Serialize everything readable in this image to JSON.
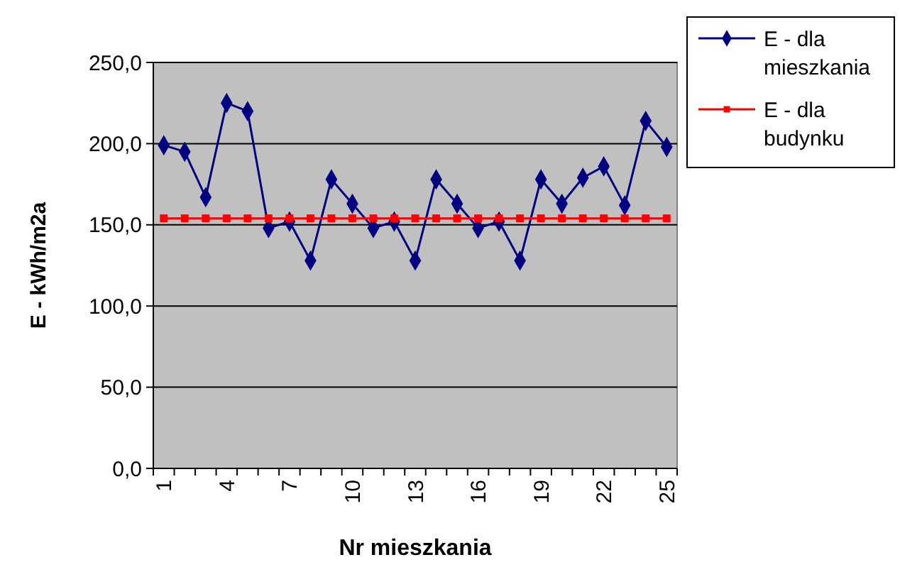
{
  "chart_data": {
    "type": "line",
    "xlabel": "Nr mieszkania",
    "ylabel": "E - kWh/m2a",
    "categories": [
      "1",
      null,
      null,
      "4",
      null,
      null,
      "7",
      null,
      null,
      "10",
      null,
      null,
      "13",
      null,
      null,
      "16",
      null,
      null,
      "19",
      null,
      null,
      "22",
      null,
      null,
      "25"
    ],
    "series": [
      {
        "name": "E - dla mieszkania",
        "color": "#000080",
        "marker": "diamond",
        "values": [
          199,
          195,
          167,
          225,
          220,
          148,
          152,
          128,
          178,
          163,
          148,
          152,
          128,
          178,
          163,
          148,
          152,
          128,
          178,
          163,
          179,
          186,
          162,
          214,
          198
        ]
      },
      {
        "name": "E - dla budynku",
        "color": "#ff0000",
        "marker": "square",
        "values": [
          154,
          154,
          154,
          154,
          154,
          154,
          154,
          154,
          154,
          154,
          154,
          154,
          154,
          154,
          154,
          154,
          154,
          154,
          154,
          154,
          154,
          154,
          154,
          154,
          154
        ]
      }
    ],
    "ylim": [
      0,
      250
    ],
    "yticks": [
      {
        "value": 0,
        "label": "0,0"
      },
      {
        "value": 50,
        "label": "50,0"
      },
      {
        "value": 100,
        "label": "100,0"
      },
      {
        "value": 150,
        "label": "150,0"
      },
      {
        "value": 200,
        "label": "200,0"
      },
      {
        "value": 250,
        "label": "250,0"
      }
    ],
    "grid": "y",
    "legend": "right"
  }
}
